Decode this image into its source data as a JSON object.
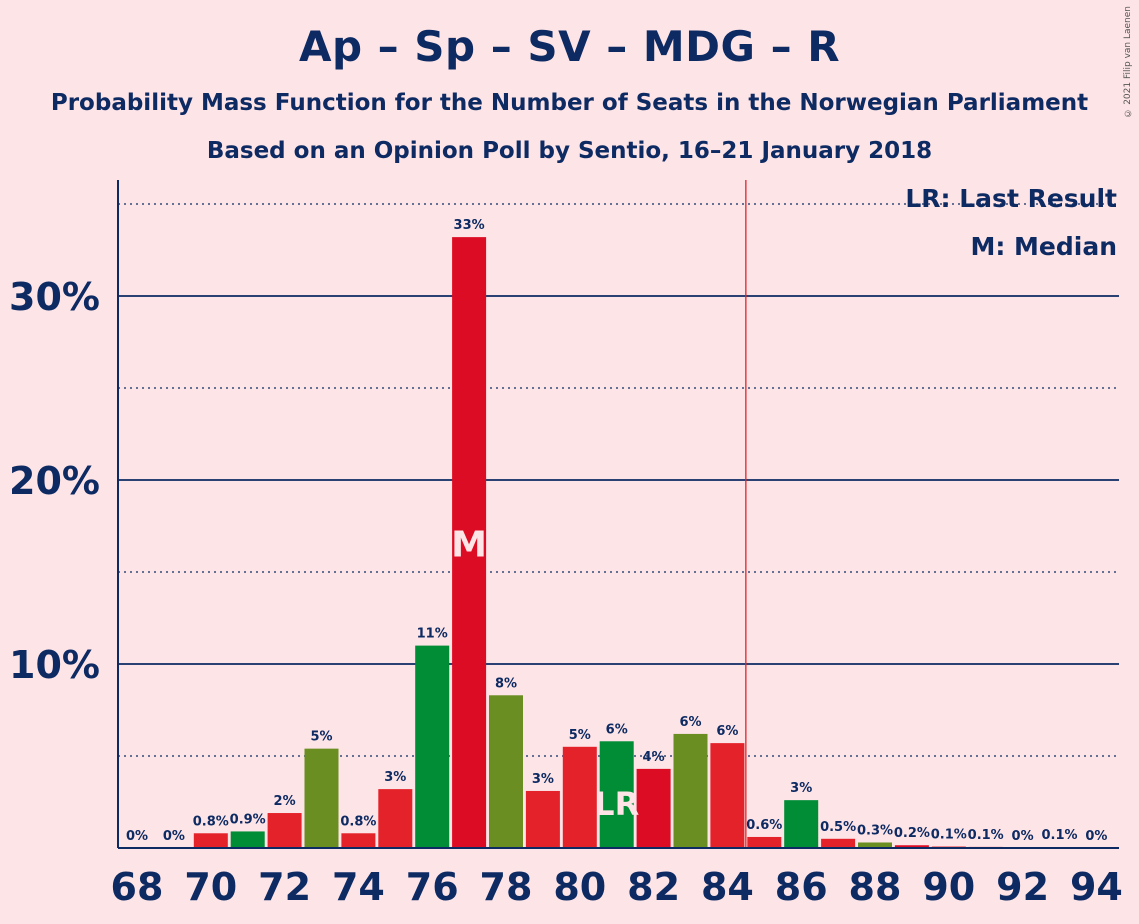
{
  "header": {
    "title": "Ap – Sp – SV – MDG – R",
    "subtitle": "Probability Mass Function for the Number of Seats in the Norwegian Parliament",
    "subtitle2": "Based on an Opinion Poll by Sentio, 16–21 January 2018",
    "copyright": "© 2021 Filip van Laenen"
  },
  "legend": {
    "lr": "LR: Last Result",
    "m": "M: Median"
  },
  "colors": {
    "background": "#fde4e6",
    "text": "#0d2a63",
    "red_dark": "#dc0c24",
    "red": "#e42229",
    "green": "#008d36",
    "olive": "#6b8e23",
    "threshold": "#e42229"
  },
  "chart_data": {
    "type": "bar",
    "x": [
      68,
      69,
      70,
      71,
      72,
      73,
      74,
      75,
      76,
      77,
      78,
      79,
      80,
      81,
      82,
      83,
      84,
      85,
      86,
      87,
      88,
      89,
      90,
      91,
      92,
      93,
      94
    ],
    "values": [
      0,
      0,
      0.8,
      0.9,
      1.9,
      5.4,
      0.8,
      3.2,
      11.0,
      33.2,
      8.3,
      3.1,
      5.5,
      5.8,
      4.3,
      6.2,
      5.7,
      0.6,
      2.6,
      0.5,
      0.3,
      0.15,
      0.08,
      0.06,
      0,
      0.05,
      0
    ],
    "labels": [
      "0%",
      "0%",
      "0.8%",
      "0.9%",
      "2%",
      "5%",
      "0.8%",
      "3%",
      "11%",
      "33%",
      "8%",
      "3%",
      "5%",
      "6%",
      "4%",
      "6%",
      "6%",
      "0.6%",
      "3%",
      "0.5%",
      "0.3%",
      "0.2%",
      "0.1%",
      "0.1%",
      "0%",
      "0.1%",
      "0%"
    ],
    "bar_colors": [
      "red",
      "red",
      "red",
      "green",
      "red",
      "olive",
      "red",
      "red",
      "green",
      "red_dark",
      "olive",
      "red",
      "red",
      "green",
      "red_dark",
      "olive",
      "red",
      "red",
      "green",
      "red",
      "olive",
      "red_dark",
      "red",
      "red",
      "red",
      "red",
      "red"
    ],
    "x_ticks": [
      "68",
      "70",
      "72",
      "74",
      "76",
      "78",
      "80",
      "82",
      "84",
      "86",
      "88",
      "90",
      "92",
      "94"
    ],
    "y_ticks": [
      "10%",
      "20%",
      "30%"
    ],
    "ylim": [
      0,
      36
    ],
    "median_seat": 77,
    "median_label": "M",
    "last_result_seat": 81,
    "last_result_label": "LR",
    "majority_line_seat": 84.5
  }
}
